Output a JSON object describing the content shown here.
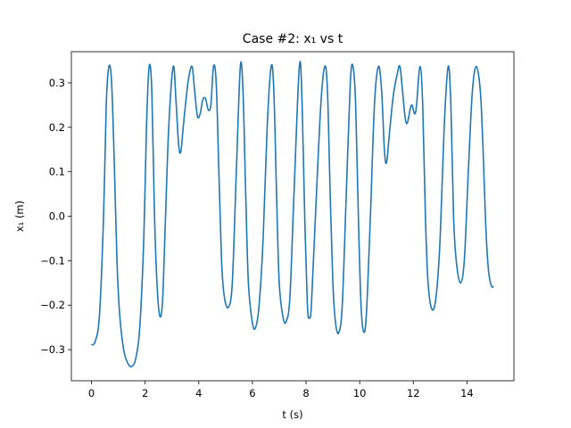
{
  "chart_data": {
    "type": "line",
    "title": "Case #2: x₁ vs t",
    "xlabel": "t (s)",
    "ylabel": "x₁ (m)",
    "xlim": [
      -0.75,
      15.75
    ],
    "ylim": [
      -0.37,
      0.37
    ],
    "x_ticks": [
      0,
      2,
      4,
      6,
      8,
      10,
      12,
      14
    ],
    "x_tick_labels": [
      "0",
      "2",
      "4",
      "6",
      "8",
      "10",
      "12",
      "14"
    ],
    "y_ticks": [
      -0.3,
      -0.2,
      -0.1,
      0.0,
      0.1,
      0.2,
      0.3
    ],
    "y_tick_labels": [
      "−0.3",
      "−0.2",
      "−0.1",
      "0.0",
      "0.1",
      "0.2",
      "0.3"
    ],
    "grid": false,
    "series": [
      {
        "color": "#1f77b4",
        "points": [
          [
            0,
            -0.29
          ],
          [
            0.15,
            -0.28
          ],
          [
            0.3,
            -0.22
          ],
          [
            0.45,
            0.0
          ],
          [
            0.55,
            0.25
          ],
          [
            0.65,
            0.337
          ],
          [
            0.75,
            0.3
          ],
          [
            0.85,
            0.12
          ],
          [
            0.95,
            -0.1
          ],
          [
            1.05,
            -0.22
          ],
          [
            1.2,
            -0.3
          ],
          [
            1.35,
            -0.33
          ],
          [
            1.5,
            -0.338
          ],
          [
            1.65,
            -0.32
          ],
          [
            1.8,
            -0.25
          ],
          [
            1.95,
            -0.05
          ],
          [
            2.05,
            0.2
          ],
          [
            2.15,
            0.337
          ],
          [
            2.25,
            0.28
          ],
          [
            2.35,
            0.0
          ],
          [
            2.45,
            -0.16
          ],
          [
            2.55,
            -0.225
          ],
          [
            2.65,
            -0.19
          ],
          [
            2.75,
            -0.02
          ],
          [
            2.88,
            0.2
          ],
          [
            3.05,
            0.337
          ],
          [
            3.15,
            0.26
          ],
          [
            3.25,
            0.16
          ],
          [
            3.33,
            0.145
          ],
          [
            3.42,
            0.2
          ],
          [
            3.52,
            0.26
          ],
          [
            3.62,
            0.31
          ],
          [
            3.75,
            0.337
          ],
          [
            3.85,
            0.28
          ],
          [
            3.95,
            0.225
          ],
          [
            4.05,
            0.23
          ],
          [
            4.15,
            0.262
          ],
          [
            4.25,
            0.265
          ],
          [
            4.35,
            0.24
          ],
          [
            4.45,
            0.25
          ],
          [
            4.55,
            0.337
          ],
          [
            4.65,
            0.3
          ],
          [
            4.75,
            0.1
          ],
          [
            4.85,
            -0.1
          ],
          [
            4.95,
            -0.18
          ],
          [
            5.1,
            -0.205
          ],
          [
            5.25,
            -0.15
          ],
          [
            5.4,
            0.1
          ],
          [
            5.55,
            0.337
          ],
          [
            5.65,
            0.28
          ],
          [
            5.75,
            0.05
          ],
          [
            5.85,
            -0.15
          ],
          [
            6.0,
            -0.24
          ],
          [
            6.12,
            -0.25
          ],
          [
            6.25,
            -0.2
          ],
          [
            6.4,
            -0.05
          ],
          [
            6.55,
            0.2
          ],
          [
            6.7,
            0.337
          ],
          [
            6.8,
            0.28
          ],
          [
            6.9,
            0.05
          ],
          [
            7.0,
            -0.15
          ],
          [
            7.15,
            -0.23
          ],
          [
            7.27,
            -0.235
          ],
          [
            7.4,
            -0.18
          ],
          [
            7.55,
            0.05
          ],
          [
            7.75,
            0.337
          ],
          [
            7.85,
            0.26
          ],
          [
            7.95,
            0.0
          ],
          [
            8.05,
            -0.2
          ],
          [
            8.12,
            -0.228
          ],
          [
            8.2,
            -0.2
          ],
          [
            8.35,
            0.0
          ],
          [
            8.55,
            0.25
          ],
          [
            8.7,
            0.337
          ],
          [
            8.8,
            0.28
          ],
          [
            8.9,
            0.05
          ],
          [
            9.0,
            -0.15
          ],
          [
            9.1,
            -0.24
          ],
          [
            9.22,
            -0.262
          ],
          [
            9.35,
            -0.2
          ],
          [
            9.5,
            0.05
          ],
          [
            9.65,
            0.3
          ],
          [
            9.75,
            0.337
          ],
          [
            9.85,
            0.25
          ],
          [
            9.95,
            0.0
          ],
          [
            10.05,
            -0.2
          ],
          [
            10.15,
            -0.26
          ],
          [
            10.25,
            -0.22
          ],
          [
            10.4,
            0.0
          ],
          [
            10.55,
            0.25
          ],
          [
            10.7,
            0.337
          ],
          [
            10.82,
            0.28
          ],
          [
            10.92,
            0.15
          ],
          [
            11.0,
            0.12
          ],
          [
            11.1,
            0.18
          ],
          [
            11.25,
            0.27
          ],
          [
            11.4,
            0.32
          ],
          [
            11.5,
            0.337
          ],
          [
            11.6,
            0.28
          ],
          [
            11.7,
            0.22
          ],
          [
            11.78,
            0.21
          ],
          [
            11.88,
            0.24
          ],
          [
            11.95,
            0.25
          ],
          [
            12.05,
            0.23
          ],
          [
            12.12,
            0.25
          ],
          [
            12.25,
            0.337
          ],
          [
            12.35,
            0.25
          ],
          [
            12.45,
            0.0
          ],
          [
            12.55,
            -0.15
          ],
          [
            12.7,
            -0.21
          ],
          [
            12.85,
            -0.18
          ],
          [
            13.0,
            -0.05
          ],
          [
            13.15,
            0.2
          ],
          [
            13.3,
            0.337
          ],
          [
            13.4,
            0.25
          ],
          [
            13.5,
            0.0
          ],
          [
            13.6,
            -0.1
          ],
          [
            13.75,
            -0.15
          ],
          [
            13.9,
            -0.1
          ],
          [
            14.05,
            0.1
          ],
          [
            14.2,
            0.28
          ],
          [
            14.35,
            0.337
          ],
          [
            14.5,
            0.28
          ],
          [
            14.6,
            0.15
          ],
          [
            14.7,
            -0.02
          ],
          [
            14.8,
            -0.12
          ],
          [
            14.9,
            -0.155
          ],
          [
            15.0,
            -0.16
          ]
        ]
      }
    ]
  }
}
